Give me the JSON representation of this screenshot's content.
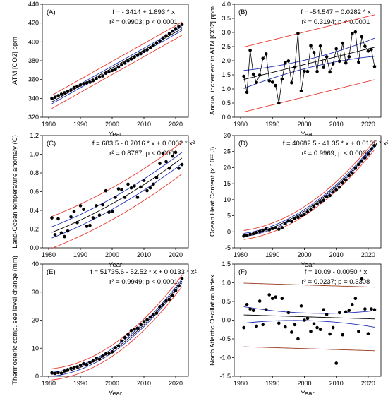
{
  "figure": {
    "xlabel": "Year",
    "colors": {
      "data": "#000000",
      "fit": "#000000",
      "confidence": "#1f2fb5",
      "prediction": "#e8392f",
      "prediction_f": "#9a3a22"
    }
  },
  "chart_data": [
    {
      "panel_label": "(A)",
      "type": "scatter",
      "ylabel": "ATM [CO2] ppm",
      "equation": "f = - 3414 + 1.893 * x",
      "stats": "r² = 0.9903; p < 0.0001",
      "xlim": [
        1978,
        2024
      ],
      "ylim": [
        320,
        440
      ],
      "yticks": [
        320,
        340,
        360,
        380,
        400,
        420,
        440
      ],
      "xticks": [
        1980,
        1990,
        2000,
        2010,
        2020
      ],
      "ci_halfwidth": 2.0,
      "pi_halfwidth": 7.0,
      "x": [
        1981,
        1982,
        1983,
        1984,
        1985,
        1986,
        1987,
        1988,
        1989,
        1990,
        1991,
        1992,
        1993,
        1994,
        1995,
        1996,
        1997,
        1998,
        1999,
        2000,
        2001,
        2002,
        2003,
        2004,
        2005,
        2006,
        2007,
        2008,
        2009,
        2010,
        2011,
        2012,
        2013,
        2014,
        2015,
        2016,
        2017,
        2018,
        2019,
        2020,
        2021,
        2022
      ],
      "y": [
        340.1,
        341.2,
        342.8,
        344.4,
        345.9,
        347.2,
        348.9,
        351.5,
        352.9,
        354.2,
        355.6,
        356.4,
        357.1,
        358.9,
        360.9,
        362.7,
        363.8,
        366.7,
        368.4,
        369.6,
        371.1,
        373.2,
        375.8,
        377.5,
        379.8,
        381.9,
        383.8,
        385.6,
        387.4,
        389.9,
        391.6,
        393.9,
        396.5,
        398.6,
        400.8,
        404.2,
        406.5,
        408.7,
        411.4,
        414.2,
        416.4,
        418.5
      ]
    },
    {
      "panel_label": "(B)",
      "type": "line",
      "ylabel": "Annual increment in ATM [CO2] ppm",
      "equation": "f = -54.547 + 0.0282 * x",
      "stats": "r² = 0.3194; p < 0.0001",
      "xlim": [
        1978,
        2024
      ],
      "ylim": [
        0,
        4
      ],
      "yticks": [
        0.0,
        0.5,
        1.0,
        1.5,
        2.0,
        2.5,
        3.0,
        3.5,
        4.0
      ],
      "xticks": [
        1980,
        1990,
        2000,
        2010,
        2020
      ],
      "ci_at_start": 0.32,
      "ci_at_mid": 0.15,
      "ci_at_end": 0.32,
      "pi_halfwidth": 1.15,
      "x": [
        1981,
        1982,
        1983,
        1984,
        1985,
        1986,
        1987,
        1988,
        1989,
        1990,
        1991,
        1992,
        1993,
        1994,
        1995,
        1996,
        1997,
        1998,
        1999,
        2000,
        2001,
        2002,
        2003,
        2004,
        2005,
        2006,
        2007,
        2008,
        2009,
        2010,
        2011,
        2012,
        2013,
        2014,
        2015,
        2016,
        2017,
        2018,
        2019,
        2020,
        2021,
        2022
      ],
      "y": [
        1.45,
        0.88,
        2.37,
        1.52,
        1.23,
        1.49,
        2.08,
        2.24,
        1.29,
        1.24,
        1.12,
        0.5,
        1.35,
        1.93,
        1.99,
        1.22,
        1.77,
        2.97,
        0.93,
        1.63,
        1.62,
        2.53,
        2.29,
        1.62,
        2.52,
        1.76,
        2.14,
        1.6,
        1.89,
        2.42,
        1.98,
        2.62,
        1.92,
        2.14,
        2.96,
        3.02,
        1.95,
        2.85,
        2.51,
        2.34,
        2.4,
        1.79
      ]
    },
    {
      "panel_label": "(C)",
      "type": "scatter",
      "ylabel": "Land-Ocean temperature anomaly (C)",
      "equation": "f = 683.5 - 0.7016 * x + 0.0002 * x²",
      "stats": "r² = 0.8767; p < 0.0001",
      "xlim": [
        1978,
        2024
      ],
      "ylim": [
        0,
        1.2
      ],
      "yticks": [
        0.0,
        0.2,
        0.4,
        0.6,
        0.8,
        1.0,
        1.2
      ],
      "xticks": [
        1980,
        1990,
        2000,
        2010,
        2020
      ],
      "fit_at_1981": 0.165,
      "fit_at_2001": 0.49,
      "fit_at_2022": 0.96,
      "ci_halfwidth": 0.06,
      "pi_halfwidth": 0.17,
      "x": [
        1981,
        1982,
        1983,
        1984,
        1985,
        1986,
        1987,
        1988,
        1989,
        1990,
        1991,
        1992,
        1993,
        1994,
        1995,
        1996,
        1997,
        1998,
        1999,
        2000,
        2001,
        2002,
        2003,
        2004,
        2005,
        2006,
        2007,
        2008,
        2009,
        2010,
        2011,
        2012,
        2013,
        2014,
        2015,
        2016,
        2017,
        2018,
        2019,
        2020,
        2021,
        2022
      ],
      "y": [
        0.32,
        0.14,
        0.31,
        0.16,
        0.12,
        0.18,
        0.33,
        0.39,
        0.27,
        0.45,
        0.41,
        0.23,
        0.24,
        0.32,
        0.45,
        0.35,
        0.46,
        0.61,
        0.38,
        0.39,
        0.54,
        0.63,
        0.62,
        0.54,
        0.68,
        0.64,
        0.66,
        0.54,
        0.65,
        0.72,
        0.61,
        0.64,
        0.68,
        0.75,
        0.9,
        1.01,
        0.92,
        0.85,
        0.98,
        1.02,
        0.85,
        0.89
      ]
    },
    {
      "panel_label": "(D)",
      "type": "scatter",
      "ylabel": "Ocean Heat Content (x 10²² J)",
      "equation": "f = 40682.5 - 41.35 * x + 0.0105 * x²",
      "stats": "r² = 0.9969; p < 0.0001",
      "xlim": [
        1978,
        2024
      ],
      "ylim": [
        -5,
        30
      ],
      "yticks": [
        -5,
        0,
        5,
        10,
        15,
        20,
        25,
        30
      ],
      "xticks": [
        1980,
        1990,
        2000,
        2010,
        2020
      ],
      "fit_at_1981": -1.0,
      "fit_at_2001": 7.1,
      "fit_at_2022": 27.0,
      "ci_halfwidth": 0.5,
      "pi_halfwidth": 1.4,
      "x": [
        1981,
        1982,
        1983,
        1984,
        1985,
        1986,
        1987,
        1988,
        1989,
        1990,
        1991,
        1992,
        1993,
        1994,
        1995,
        1996,
        1997,
        1998,
        1999,
        2000,
        2001,
        2002,
        2003,
        2004,
        2005,
        2006,
        2007,
        2008,
        2009,
        2010,
        2011,
        2012,
        2013,
        2014,
        2015,
        2016,
        2017,
        2018,
        2019,
        2020,
        2021,
        2022
      ],
      "y": [
        -1.3,
        -1.2,
        -0.8,
        -0.6,
        -0.2,
        0.1,
        0.5,
        0.9,
        0.6,
        1.0,
        1.2,
        0.8,
        1.3,
        2.5,
        3.4,
        3.2,
        4.1,
        4.5,
        5.0,
        5.4,
        6.2,
        6.9,
        7.8,
        8.7,
        9.2,
        9.8,
        10.9,
        11.3,
        12.4,
        13.0,
        13.9,
        15.2,
        16.1,
        17.5,
        18.3,
        19.8,
        21.0,
        22.0,
        23.1,
        24.2,
        25.8,
        26.9
      ]
    },
    {
      "panel_label": "(E)",
      "type": "scatter",
      "ylabel": "Thermosteric comp. sea level change (mm)",
      "equation": "f = 51735.6 - 52.52 * x + 0.0133 * x²",
      "stats": "r² = 0.9949; p < 0.0001",
      "xlim": [
        1978,
        2024
      ],
      "ylim": [
        0,
        40
      ],
      "yticks": [
        0,
        10,
        20,
        30,
        40
      ],
      "xticks": [
        1980,
        1990,
        2000,
        2010,
        2020
      ],
      "fit_at_1981": 0.7,
      "fit_at_2001": 9.9,
      "fit_at_2022": 34.0,
      "ci_halfwidth": 0.7,
      "pi_halfwidth": 2.0,
      "x": [
        1981,
        1982,
        1983,
        1984,
        1985,
        1986,
        1987,
        1988,
        1989,
        1990,
        1991,
        1992,
        1993,
        1994,
        1995,
        1996,
        1997,
        1998,
        1999,
        2000,
        2001,
        2002,
        2003,
        2004,
        2005,
        2006,
        2007,
        2008,
        2009,
        2010,
        2011,
        2012,
        2013,
        2014,
        2015,
        2016,
        2017,
        2018,
        2019,
        2020,
        2021,
        2022
      ],
      "y": [
        1.2,
        1.0,
        1.3,
        1.1,
        1.9,
        2.4,
        2.8,
        3.2,
        3.4,
        3.9,
        4.5,
        4.2,
        5.0,
        5.5,
        6.4,
        6.1,
        7.2,
        8.0,
        8.1,
        8.7,
        10.2,
        10.9,
        12.6,
        13.8,
        14.9,
        16.3,
        16.8,
        17.2,
        18.4,
        19.5,
        20.2,
        21.1,
        21.9,
        22.5,
        24.8,
        25.6,
        26.8,
        27.4,
        28.9,
        30.5,
        32.2,
        34.8
      ]
    },
    {
      "panel_label": "(F)",
      "type": "scatter",
      "ylabel": "North Atlantic Oscillation Index",
      "equation": "f = 10.09 - 0.0050 * x",
      "stats": "r² = 0.0237; p = 0.3308",
      "xlim": [
        1978,
        2024
      ],
      "ylim": [
        -1.5,
        1.5
      ],
      "yticks": [
        -1.5,
        -1.0,
        -0.5,
        0.0,
        0.5,
        1.0,
        1.5
      ],
      "xticks": [
        1980,
        1990,
        2000,
        2010,
        2020
      ],
      "ci_at_start": 0.22,
      "ci_at_mid": 0.1,
      "ci_at_end": 0.22,
      "pi_halfwidth": 0.85,
      "x": [
        1981,
        1982,
        1983,
        1984,
        1985,
        1986,
        1987,
        1988,
        1989,
        1990,
        1991,
        1992,
        1993,
        1994,
        1995,
        1996,
        1997,
        1998,
        1999,
        2000,
        2001,
        2002,
        2003,
        2004,
        2005,
        2006,
        2007,
        2008,
        2009,
        2010,
        2011,
        2012,
        2013,
        2014,
        2015,
        2016,
        2017,
        2018,
        2019,
        2020,
        2021,
        2022
      ],
      "y": [
        -0.2,
        0.42,
        0.3,
        0.26,
        -0.16,
        0.51,
        -0.12,
        0.28,
        0.68,
        0.58,
        0.62,
        -0.08,
        0.58,
        -0.18,
        0.2,
        -0.32,
        -0.12,
        -0.5,
        0.38,
        0.0,
        0.05,
        -0.3,
        -0.1,
        -0.2,
        -0.25,
        0.28,
        0.15,
        -0.37,
        -0.2,
        -1.15,
        0.2,
        -0.39,
        0.22,
        0.26,
        0.42,
        0.58,
        -0.3,
        1.1,
        0.3,
        -0.36,
        0.3,
        0.28
      ]
    }
  ]
}
